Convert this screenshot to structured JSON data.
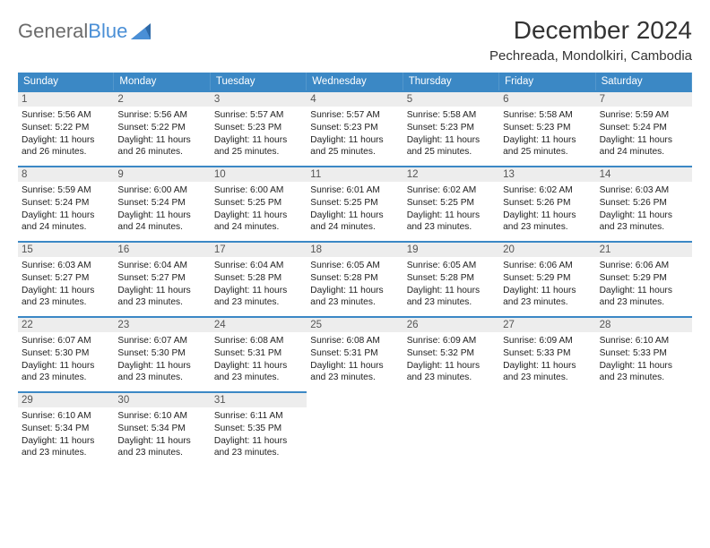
{
  "logo": {
    "text1": "General",
    "text2": "Blue"
  },
  "title": "December 2024",
  "location": "Pechreada, Mondolkiri, Cambodia",
  "colors": {
    "header_bg": "#3b88c5",
    "header_text": "#ffffff",
    "daynum_bg": "#ededed",
    "cell_border": "#3b88c5",
    "body_text": "#222222",
    "logo_gray": "#6b6b6b",
    "logo_blue": "#4a8fd6"
  },
  "dow": [
    "Sunday",
    "Monday",
    "Tuesday",
    "Wednesday",
    "Thursday",
    "Friday",
    "Saturday"
  ],
  "days": [
    {
      "n": "1",
      "sr": "Sunrise: 5:56 AM",
      "ss": "Sunset: 5:22 PM",
      "d1": "Daylight: 11 hours",
      "d2": "and 26 minutes."
    },
    {
      "n": "2",
      "sr": "Sunrise: 5:56 AM",
      "ss": "Sunset: 5:22 PM",
      "d1": "Daylight: 11 hours",
      "d2": "and 26 minutes."
    },
    {
      "n": "3",
      "sr": "Sunrise: 5:57 AM",
      "ss": "Sunset: 5:23 PM",
      "d1": "Daylight: 11 hours",
      "d2": "and 25 minutes."
    },
    {
      "n": "4",
      "sr": "Sunrise: 5:57 AM",
      "ss": "Sunset: 5:23 PM",
      "d1": "Daylight: 11 hours",
      "d2": "and 25 minutes."
    },
    {
      "n": "5",
      "sr": "Sunrise: 5:58 AM",
      "ss": "Sunset: 5:23 PM",
      "d1": "Daylight: 11 hours",
      "d2": "and 25 minutes."
    },
    {
      "n": "6",
      "sr": "Sunrise: 5:58 AM",
      "ss": "Sunset: 5:23 PM",
      "d1": "Daylight: 11 hours",
      "d2": "and 25 minutes."
    },
    {
      "n": "7",
      "sr": "Sunrise: 5:59 AM",
      "ss": "Sunset: 5:24 PM",
      "d1": "Daylight: 11 hours",
      "d2": "and 24 minutes."
    },
    {
      "n": "8",
      "sr": "Sunrise: 5:59 AM",
      "ss": "Sunset: 5:24 PM",
      "d1": "Daylight: 11 hours",
      "d2": "and 24 minutes."
    },
    {
      "n": "9",
      "sr": "Sunrise: 6:00 AM",
      "ss": "Sunset: 5:24 PM",
      "d1": "Daylight: 11 hours",
      "d2": "and 24 minutes."
    },
    {
      "n": "10",
      "sr": "Sunrise: 6:00 AM",
      "ss": "Sunset: 5:25 PM",
      "d1": "Daylight: 11 hours",
      "d2": "and 24 minutes."
    },
    {
      "n": "11",
      "sr": "Sunrise: 6:01 AM",
      "ss": "Sunset: 5:25 PM",
      "d1": "Daylight: 11 hours",
      "d2": "and 24 minutes."
    },
    {
      "n": "12",
      "sr": "Sunrise: 6:02 AM",
      "ss": "Sunset: 5:25 PM",
      "d1": "Daylight: 11 hours",
      "d2": "and 23 minutes."
    },
    {
      "n": "13",
      "sr": "Sunrise: 6:02 AM",
      "ss": "Sunset: 5:26 PM",
      "d1": "Daylight: 11 hours",
      "d2": "and 23 minutes."
    },
    {
      "n": "14",
      "sr": "Sunrise: 6:03 AM",
      "ss": "Sunset: 5:26 PM",
      "d1": "Daylight: 11 hours",
      "d2": "and 23 minutes."
    },
    {
      "n": "15",
      "sr": "Sunrise: 6:03 AM",
      "ss": "Sunset: 5:27 PM",
      "d1": "Daylight: 11 hours",
      "d2": "and 23 minutes."
    },
    {
      "n": "16",
      "sr": "Sunrise: 6:04 AM",
      "ss": "Sunset: 5:27 PM",
      "d1": "Daylight: 11 hours",
      "d2": "and 23 minutes."
    },
    {
      "n": "17",
      "sr": "Sunrise: 6:04 AM",
      "ss": "Sunset: 5:28 PM",
      "d1": "Daylight: 11 hours",
      "d2": "and 23 minutes."
    },
    {
      "n": "18",
      "sr": "Sunrise: 6:05 AM",
      "ss": "Sunset: 5:28 PM",
      "d1": "Daylight: 11 hours",
      "d2": "and 23 minutes."
    },
    {
      "n": "19",
      "sr": "Sunrise: 6:05 AM",
      "ss": "Sunset: 5:28 PM",
      "d1": "Daylight: 11 hours",
      "d2": "and 23 minutes."
    },
    {
      "n": "20",
      "sr": "Sunrise: 6:06 AM",
      "ss": "Sunset: 5:29 PM",
      "d1": "Daylight: 11 hours",
      "d2": "and 23 minutes."
    },
    {
      "n": "21",
      "sr": "Sunrise: 6:06 AM",
      "ss": "Sunset: 5:29 PM",
      "d1": "Daylight: 11 hours",
      "d2": "and 23 minutes."
    },
    {
      "n": "22",
      "sr": "Sunrise: 6:07 AM",
      "ss": "Sunset: 5:30 PM",
      "d1": "Daylight: 11 hours",
      "d2": "and 23 minutes."
    },
    {
      "n": "23",
      "sr": "Sunrise: 6:07 AM",
      "ss": "Sunset: 5:30 PM",
      "d1": "Daylight: 11 hours",
      "d2": "and 23 minutes."
    },
    {
      "n": "24",
      "sr": "Sunrise: 6:08 AM",
      "ss": "Sunset: 5:31 PM",
      "d1": "Daylight: 11 hours",
      "d2": "and 23 minutes."
    },
    {
      "n": "25",
      "sr": "Sunrise: 6:08 AM",
      "ss": "Sunset: 5:31 PM",
      "d1": "Daylight: 11 hours",
      "d2": "and 23 minutes."
    },
    {
      "n": "26",
      "sr": "Sunrise: 6:09 AM",
      "ss": "Sunset: 5:32 PM",
      "d1": "Daylight: 11 hours",
      "d2": "and 23 minutes."
    },
    {
      "n": "27",
      "sr": "Sunrise: 6:09 AM",
      "ss": "Sunset: 5:33 PM",
      "d1": "Daylight: 11 hours",
      "d2": "and 23 minutes."
    },
    {
      "n": "28",
      "sr": "Sunrise: 6:10 AM",
      "ss": "Sunset: 5:33 PM",
      "d1": "Daylight: 11 hours",
      "d2": "and 23 minutes."
    },
    {
      "n": "29",
      "sr": "Sunrise: 6:10 AM",
      "ss": "Sunset: 5:34 PM",
      "d1": "Daylight: 11 hours",
      "d2": "and 23 minutes."
    },
    {
      "n": "30",
      "sr": "Sunrise: 6:10 AM",
      "ss": "Sunset: 5:34 PM",
      "d1": "Daylight: 11 hours",
      "d2": "and 23 minutes."
    },
    {
      "n": "31",
      "sr": "Sunrise: 6:11 AM",
      "ss": "Sunset: 5:35 PM",
      "d1": "Daylight: 11 hours",
      "d2": "and 23 minutes."
    }
  ]
}
